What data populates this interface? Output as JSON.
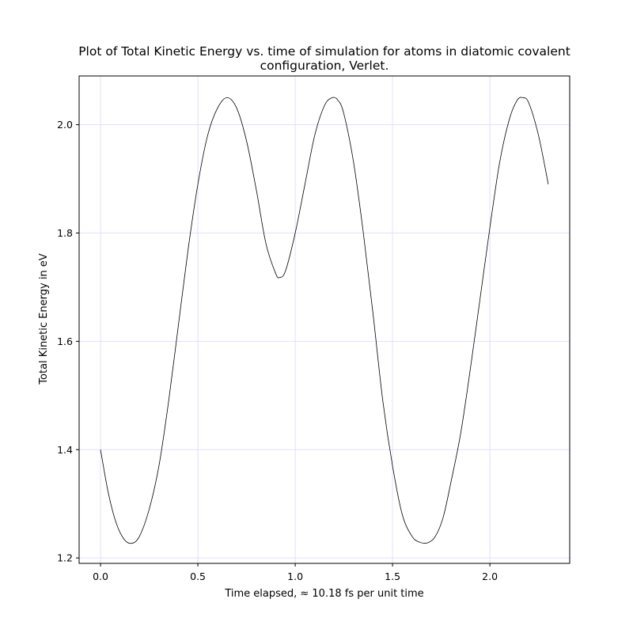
{
  "chart_data": {
    "type": "line",
    "title_line1": "Plot of Total Kinetic Energy vs. time of simulation for atoms in diatomic covalent",
    "title_line2": "configuration, Verlet.",
    "xlabel": "Time elapsed,  ≈ 10.18 fs per unit time",
    "ylabel": "Total Kinetic Energy in eV",
    "xlim": [
      -0.11,
      2.41
    ],
    "ylim": [
      1.19,
      2.09
    ],
    "x_ticks": [
      0.0,
      0.5,
      1.0,
      1.5,
      2.0
    ],
    "x_tick_labels": [
      "0.0",
      "0.5",
      "1.0",
      "1.5",
      "2.0"
    ],
    "y_ticks": [
      1.2,
      1.4,
      1.6,
      1.8,
      2.0
    ],
    "y_tick_labels": [
      "1.2",
      "1.4",
      "1.6",
      "1.8",
      "2.0"
    ],
    "grid": true,
    "grid_color": "#d8d8ff",
    "line_color": "#000000",
    "series": [
      {
        "x": [
          0.0,
          0.04,
          0.08,
          0.12,
          0.16,
          0.2,
          0.25,
          0.3,
          0.35,
          0.4,
          0.45,
          0.5,
          0.55,
          0.6,
          0.65,
          0.7,
          0.75,
          0.8,
          0.85,
          0.9,
          0.92,
          0.95,
          1.0,
          1.05,
          1.1,
          1.15,
          1.19,
          1.22,
          1.25,
          1.3,
          1.35,
          1.4,
          1.45,
          1.5,
          1.55,
          1.6,
          1.64,
          1.68,
          1.72,
          1.76,
          1.8,
          1.85,
          1.9,
          1.95,
          2.0,
          2.05,
          2.1,
          2.14,
          2.17,
          2.2,
          2.25,
          2.3
        ],
        "y": [
          1.4,
          1.32,
          1.265,
          1.235,
          1.227,
          1.24,
          1.29,
          1.37,
          1.49,
          1.63,
          1.77,
          1.89,
          1.98,
          2.03,
          2.05,
          2.03,
          1.97,
          1.88,
          1.78,
          1.725,
          1.718,
          1.73,
          1.8,
          1.89,
          1.98,
          2.035,
          2.05,
          2.045,
          2.02,
          1.93,
          1.8,
          1.65,
          1.49,
          1.37,
          1.28,
          1.24,
          1.229,
          1.228,
          1.24,
          1.275,
          1.34,
          1.43,
          1.55,
          1.68,
          1.81,
          1.93,
          2.01,
          2.045,
          2.05,
          2.04,
          1.98,
          1.89
        ]
      }
    ]
  }
}
